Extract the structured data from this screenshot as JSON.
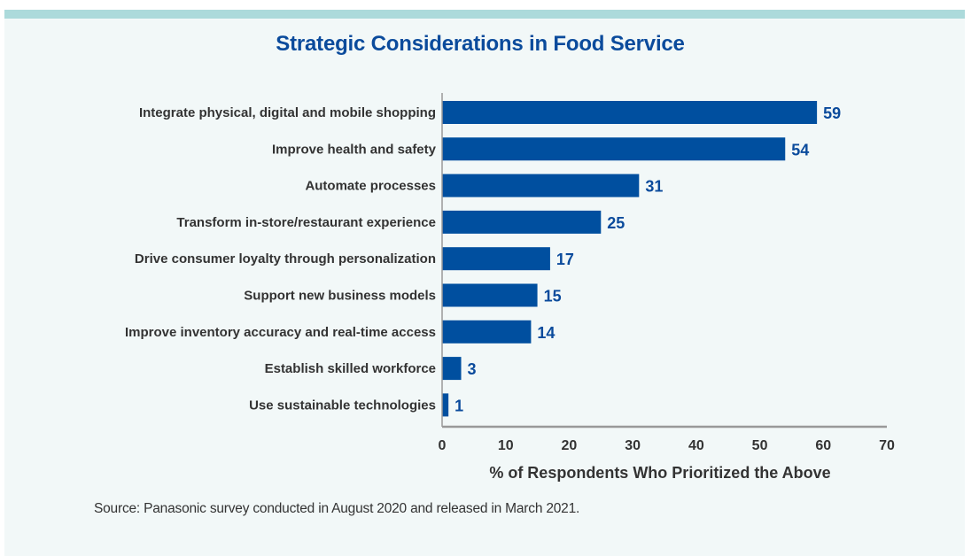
{
  "chart_data": {
    "type": "bar",
    "orientation": "horizontal",
    "title": "Strategic Considerations in Food Service",
    "categories": [
      "Integrate physical, digital and mobile shopping",
      "Improve health and safety",
      "Automate processes",
      "Transform in-store/restaurant experience",
      "Drive consumer loyalty through personalization",
      "Support new business models",
      "Improve inventory accuracy and real-time access",
      "Establish skilled workforce",
      "Use sustainable technologies"
    ],
    "values": [
      59,
      54,
      31,
      25,
      17,
      15,
      14,
      3,
      1
    ],
    "xlabel": "% of Respondents Who Prioritized the Above",
    "ylabel": "",
    "xlim": [
      0,
      70
    ],
    "xticks": [
      0,
      10,
      20,
      30,
      40,
      50,
      60,
      70
    ],
    "grid": false,
    "legend": null,
    "data_labels": true,
    "bar_color": "#004f9f",
    "label_color": "#0b4b9c",
    "source": "Source: Panasonic survey conducted in August 2020 and released in March 2021."
  },
  "colors": {
    "background": "#f2f8f8",
    "top_strip": "#acdadb",
    "title": "#0b4b9c",
    "text": "#333333",
    "axis": "#999999"
  }
}
